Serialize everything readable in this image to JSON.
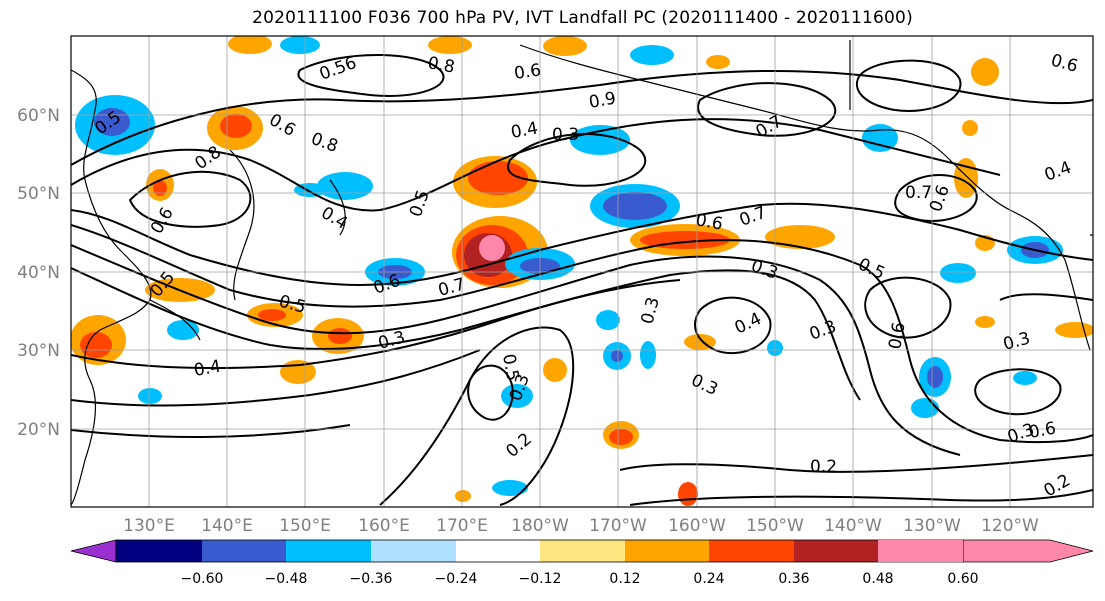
{
  "title": "2020111100 F036 700 hPa PV, IVT Landfall PC (2020111400 - 2020111600)",
  "latitude_labels": [
    "60°N",
    "50°N",
    "40°N",
    "30°N",
    "20°N"
  ],
  "longitude_labels": [
    "130°E",
    "140°E",
    "150°E",
    "160°E",
    "170°E",
    "180°W",
    "170°W",
    "160°W",
    "150°W",
    "140°W",
    "130°W",
    "120°W"
  ],
  "colorbar": {
    "colors": [
      "#9b30d0",
      "#000080",
      "#3a5bd0",
      "#00bfff",
      "#b0e0ff",
      "#ffffff",
      "#ffe680",
      "#ffa500",
      "#ff4500",
      "#b22222",
      "#ff88aa"
    ],
    "tick_labels": [
      "−0.60",
      "−0.48",
      "−0.36",
      "−0.24",
      "−0.12",
      "0.12",
      "0.24",
      "0.36",
      "0.48",
      "0.60"
    ]
  },
  "contour_labels": [
    "0.5",
    "0.56",
    "0.8",
    "0.6",
    "0.9",
    "0.6",
    "0.8",
    "0.4",
    "0.3",
    "0.7",
    "0.7",
    "0.4",
    "0.5",
    "0.6",
    "0.7",
    "0.5",
    "0.8",
    "0.6",
    "0.4",
    "0.5",
    "0.6",
    "0.7",
    "0.6",
    "0.3",
    "0.5",
    "0.3",
    "0.4",
    "0.3",
    "0.3",
    "0.6",
    "0.3",
    "0.4",
    "0.5",
    "0.3",
    "0.2",
    "0.3",
    "0.2",
    "0.6",
    "0.3",
    "0.2",
    "0.6"
  ],
  "colors": {
    "contour": "#000000",
    "coastline": "#000000",
    "grid": "#a0a0a0"
  }
}
